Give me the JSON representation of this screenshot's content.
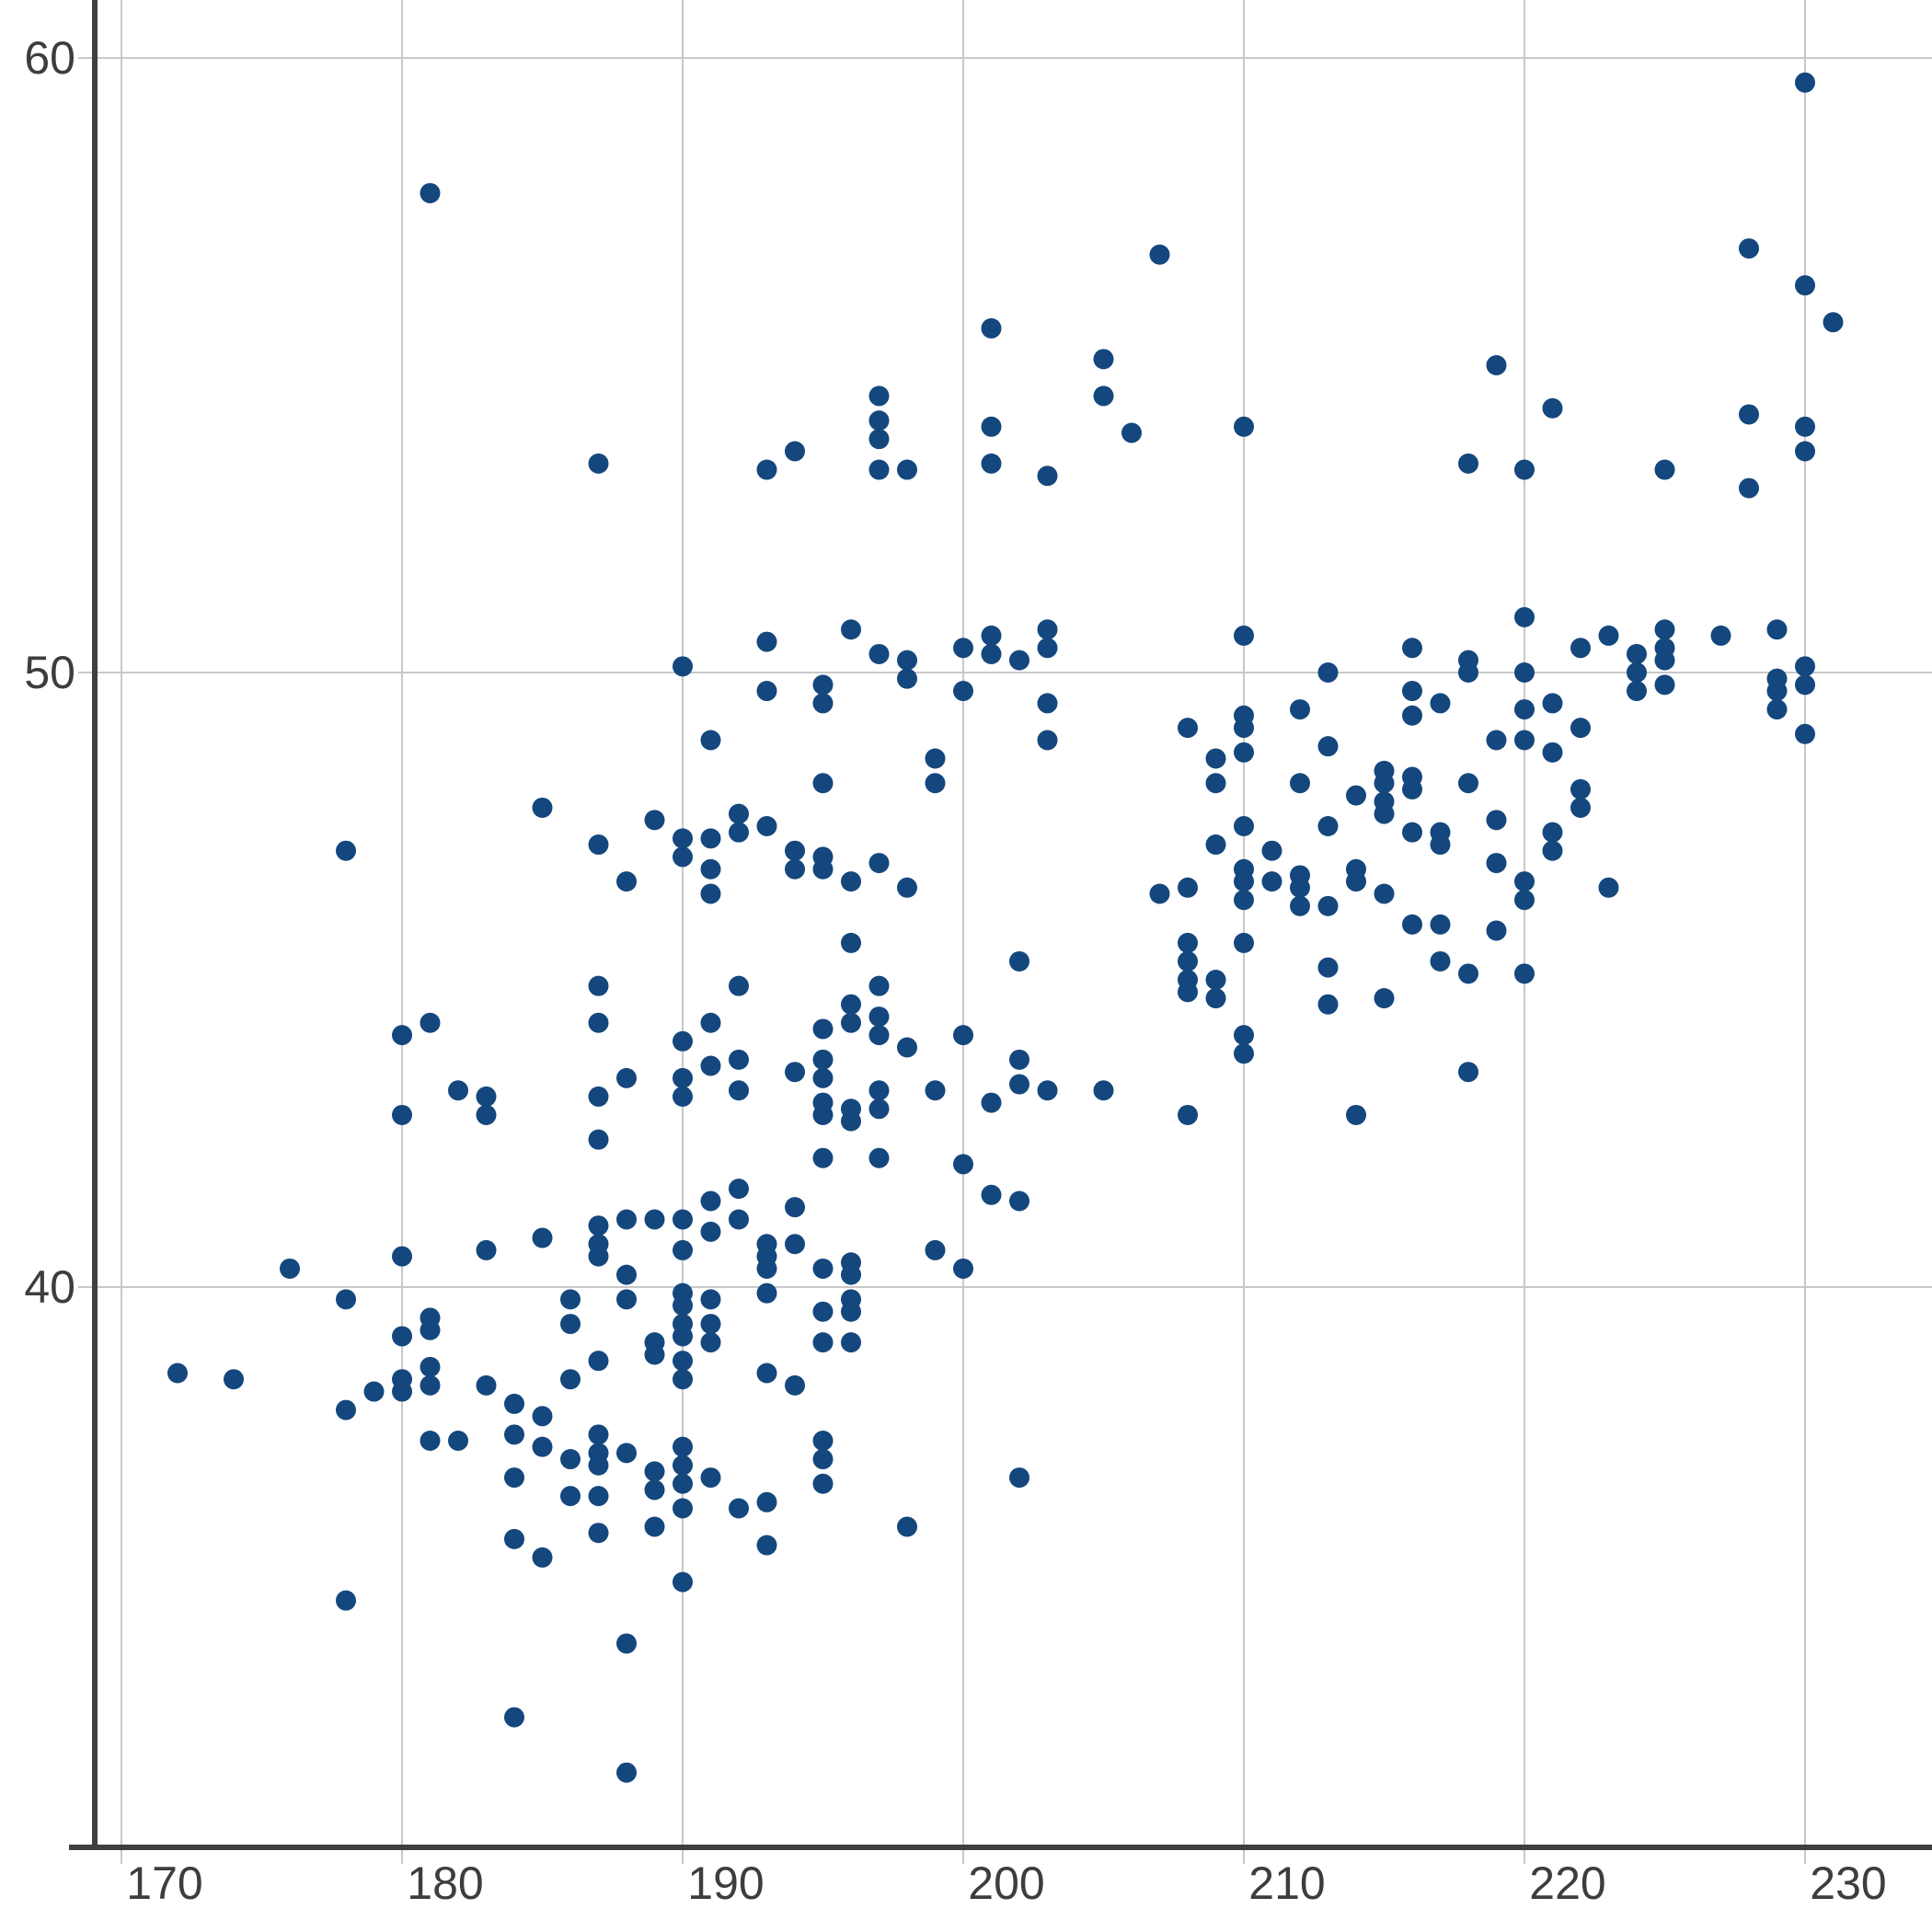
{
  "chart_data": {
    "type": "scatter",
    "title": "",
    "xlabel": "",
    "ylabel": "",
    "x_ticks": [
      170,
      180,
      190,
      200,
      210,
      220,
      230
    ],
    "y_ticks": [
      40,
      50,
      60
    ],
    "xlim": [
      169.0,
      234.5
    ],
    "ylim": [
      30.4,
      61.0
    ],
    "grid": true,
    "legend_position": "none",
    "point_color": "#14477D",
    "axis_color": "#3F3F3F",
    "grid_color": "#C8C8C8",
    "tick_label_color": "#3D3D3D",
    "points": [
      [
        181,
        57.8
      ],
      [
        230,
        59.6
      ],
      [
        228,
        56.9
      ],
      [
        230,
        56.3
      ],
      [
        231,
        55.7
      ],
      [
        207,
        56.8
      ],
      [
        201,
        55.6
      ],
      [
        205,
        55.1
      ],
      [
        219,
        55.0
      ],
      [
        205,
        54.5
      ],
      [
        197,
        54.5
      ],
      [
        221,
        54.3
      ],
      [
        228,
        54.2
      ],
      [
        197,
        54.1
      ],
      [
        210,
        54.0
      ],
      [
        201,
        54.0
      ],
      [
        230,
        54.0
      ],
      [
        206,
        53.9
      ],
      [
        197,
        53.8
      ],
      [
        230,
        53.6
      ],
      [
        194,
        53.6
      ],
      [
        187,
        53.4
      ],
      [
        201,
        53.4
      ],
      [
        218,
        53.4
      ],
      [
        193,
        53.3
      ],
      [
        197,
        53.3
      ],
      [
        198,
        53.3
      ],
      [
        220,
        53.3
      ],
      [
        225,
        53.3
      ],
      [
        203,
        53.2
      ],
      [
        228,
        53.0
      ],
      [
        229,
        50.7
      ],
      [
        225,
        50.7
      ],
      [
        203,
        50.7
      ],
      [
        196,
        50.7
      ],
      [
        223,
        50.6
      ],
      [
        227,
        50.6
      ],
      [
        210,
        50.6
      ],
      [
        201,
        50.6
      ],
      [
        220,
        50.9
      ],
      [
        222,
        50.4
      ],
      [
        224,
        50.3
      ],
      [
        224,
        50.0
      ],
      [
        224,
        49.7
      ],
      [
        225,
        50.4
      ],
      [
        225,
        50.2
      ],
      [
        225,
        49.8
      ],
      [
        220,
        50.0
      ],
      [
        229,
        49.9
      ],
      [
        229,
        49.7
      ],
      [
        230,
        50.1
      ],
      [
        230,
        49.8
      ],
      [
        216,
        50.4
      ],
      [
        218,
        50.2
      ],
      [
        218,
        50.0
      ],
      [
        213,
        50.0
      ],
      [
        203,
        50.4
      ],
      [
        202,
        50.2
      ],
      [
        200,
        50.4
      ],
      [
        201,
        50.3
      ],
      [
        190,
        50.1
      ],
      [
        193,
        50.5
      ],
      [
        197,
        50.3
      ],
      [
        198,
        50.2
      ],
      [
        198,
        49.9
      ],
      [
        193,
        49.7
      ],
      [
        195,
        49.8
      ],
      [
        195,
        49.5
      ],
      [
        200,
        49.7
      ],
      [
        203,
        49.5
      ],
      [
        216,
        49.7
      ],
      [
        216,
        49.3
      ],
      [
        217,
        49.5
      ],
      [
        210,
        49.3
      ],
      [
        210,
        49.1
      ],
      [
        212,
        49.4
      ],
      [
        220,
        49.4
      ],
      [
        221,
        49.5
      ],
      [
        229,
        49.4
      ],
      [
        222,
        49.1
      ],
      [
        230,
        49.0
      ],
      [
        219,
        48.9
      ],
      [
        220,
        48.9
      ],
      [
        221,
        48.7
      ],
      [
        208,
        49.1
      ],
      [
        213,
        48.8
      ],
      [
        203,
        48.9
      ],
      [
        209,
        48.6
      ],
      [
        210,
        48.7
      ],
      [
        215,
        48.4
      ],
      [
        215,
        48.2
      ],
      [
        215,
        47.9
      ],
      [
        216,
        48.3
      ],
      [
        212,
        48.2
      ],
      [
        209,
        48.2
      ],
      [
        214,
        48.0
      ],
      [
        216,
        48.1
      ],
      [
        218,
        48.2
      ],
      [
        191,
        48.9
      ],
      [
        199,
        48.6
      ],
      [
        199,
        48.2
      ],
      [
        195,
        48.2
      ],
      [
        222,
        48.1
      ],
      [
        222,
        47.8
      ],
      [
        219,
        47.6
      ],
      [
        221,
        47.4
      ],
      [
        221,
        47.1
      ],
      [
        219,
        46.9
      ],
      [
        185,
        47.8
      ],
      [
        178,
        47.1
      ],
      [
        189,
        47.6
      ],
      [
        192,
        47.7
      ],
      [
        192,
        47.4
      ],
      [
        193,
        47.5
      ],
      [
        190,
        47.3
      ],
      [
        187,
        47.2
      ],
      [
        191,
        47.3
      ],
      [
        190,
        47.0
      ],
      [
        210,
        47.5
      ],
      [
        209,
        47.2
      ],
      [
        213,
        47.5
      ],
      [
        215,
        47.7
      ],
      [
        216,
        47.4
      ],
      [
        217,
        47.4
      ],
      [
        217,
        47.2
      ],
      [
        211,
        47.1
      ],
      [
        188,
        46.6
      ],
      [
        191,
        46.8
      ],
      [
        191,
        46.4
      ],
      [
        194,
        47.1
      ],
      [
        194,
        46.8
      ],
      [
        195,
        47.0
      ],
      [
        195,
        46.8
      ],
      [
        196,
        46.6
      ],
      [
        197,
        46.9
      ],
      [
        198,
        46.5
      ],
      [
        214,
        46.8
      ],
      [
        214,
        46.6
      ],
      [
        210,
        46.8
      ],
      [
        210,
        46.6
      ],
      [
        210,
        46.3
      ],
      [
        211,
        46.6
      ],
      [
        212,
        46.7
      ],
      [
        212,
        46.5
      ],
      [
        212,
        46.2
      ],
      [
        208,
        46.5
      ],
      [
        207,
        46.4
      ],
      [
        213,
        46.2
      ],
      [
        215,
        46.4
      ],
      [
        220,
        46.6
      ],
      [
        220,
        46.3
      ],
      [
        223,
        46.5
      ],
      [
        216,
        45.9
      ],
      [
        217,
        45.9
      ],
      [
        219,
        45.8
      ],
      [
        210,
        45.6
      ],
      [
        208,
        45.6
      ],
      [
        208,
        45.3
      ],
      [
        213,
        45.2
      ],
      [
        217,
        45.3
      ],
      [
        218,
        45.1
      ],
      [
        196,
        45.6
      ],
      [
        208,
        45.0
      ],
      [
        209,
        45.0
      ],
      [
        208,
        44.8
      ],
      [
        209,
        44.7
      ],
      [
        213,
        44.6
      ],
      [
        215,
        44.7
      ],
      [
        220,
        45.1
      ],
      [
        202,
        45.3
      ],
      [
        187,
        44.9
      ],
      [
        192,
        44.9
      ],
      [
        197,
        44.9
      ],
      [
        196,
        44.6
      ],
      [
        196,
        44.3
      ],
      [
        197,
        44.4
      ],
      [
        197,
        44.1
      ],
      [
        187,
        44.3
      ],
      [
        191,
        44.3
      ],
      [
        190,
        44.0
      ],
      [
        195,
        44.2
      ],
      [
        200,
        44.1
      ],
      [
        180,
        44.1
      ],
      [
        181,
        44.3
      ],
      [
        198,
        43.9
      ],
      [
        210,
        44.1
      ],
      [
        210,
        43.8
      ],
      [
        192,
        43.7
      ],
      [
        191,
        43.6
      ],
      [
        195,
        43.7
      ],
      [
        195,
        43.4
      ],
      [
        194,
        43.5
      ],
      [
        188,
        43.4
      ],
      [
        190,
        43.4
      ],
      [
        190,
        43.1
      ],
      [
        187,
        43.1
      ],
      [
        195,
        43.0
      ],
      [
        201,
        43.0
      ],
      [
        192,
        43.2
      ],
      [
        182,
        43.2
      ],
      [
        183,
        43.1
      ],
      [
        183,
        42.8
      ],
      [
        180,
        42.8
      ],
      [
        218,
        43.5
      ],
      [
        202,
        43.7
      ],
      [
        202,
        43.3
      ],
      [
        203,
        43.2
      ],
      [
        205,
        43.2
      ],
      [
        199,
        43.2
      ],
      [
        197,
        43.2
      ],
      [
        197,
        42.9
      ],
      [
        196,
        42.9
      ],
      [
        196,
        42.7
      ],
      [
        195,
        42.8
      ],
      [
        187,
        42.4
      ],
      [
        195,
        42.1
      ],
      [
        197,
        42.1
      ],
      [
        200,
        42.0
      ],
      [
        208,
        42.8
      ],
      [
        214,
        42.8
      ],
      [
        190,
        41.1
      ],
      [
        191,
        41.4
      ],
      [
        192,
        41.6
      ],
      [
        191,
        40.9
      ],
      [
        192,
        41.1
      ],
      [
        188,
        41.1
      ],
      [
        189,
        41.1
      ],
      [
        187,
        41.0
      ],
      [
        187,
        40.7
      ],
      [
        194,
        41.3
      ],
      [
        194,
        40.7
      ],
      [
        193,
        40.7
      ],
      [
        201,
        41.5
      ],
      [
        202,
        41.4
      ],
      [
        185,
        40.8
      ],
      [
        176,
        40.3
      ],
      [
        180,
        40.5
      ],
      [
        183,
        40.6
      ],
      [
        187,
        40.5
      ],
      [
        188,
        40.2
      ],
      [
        190,
        40.6
      ],
      [
        193,
        40.5
      ],
      [
        193,
        40.3
      ],
      [
        195,
        40.3
      ],
      [
        196,
        40.4
      ],
      [
        196,
        40.2
      ],
      [
        199,
        40.6
      ],
      [
        200,
        40.3
      ],
      [
        178,
        39.8
      ],
      [
        181,
        39.5
      ],
      [
        181,
        39.3
      ],
      [
        180,
        39.2
      ],
      [
        186,
        39.8
      ],
      [
        186,
        39.4
      ],
      [
        188,
        39.8
      ],
      [
        190,
        39.9
      ],
      [
        190,
        39.7
      ],
      [
        190,
        39.4
      ],
      [
        190,
        39.2
      ],
      [
        190,
        38.8
      ],
      [
        190,
        38.5
      ],
      [
        191,
        39.8
      ],
      [
        191,
        39.4
      ],
      [
        191,
        39.1
      ],
      [
        193,
        39.9
      ],
      [
        196,
        39.8
      ],
      [
        196,
        39.6
      ],
      [
        196,
        39.1
      ],
      [
        195,
        39.6
      ],
      [
        195,
        39.1
      ],
      [
        189,
        39.1
      ],
      [
        189,
        38.9
      ],
      [
        187,
        38.8
      ],
      [
        186,
        38.5
      ],
      [
        193,
        38.6
      ],
      [
        194,
        38.4
      ],
      [
        172,
        38.6
      ],
      [
        174,
        38.5
      ],
      [
        180,
        38.5
      ],
      [
        180,
        38.3
      ],
      [
        181,
        38.4
      ],
      [
        179,
        38.3
      ],
      [
        178,
        38.0
      ],
      [
        183,
        38.4
      ],
      [
        181,
        38.7
      ],
      [
        184,
        38.1
      ],
      [
        185,
        37.9
      ],
      [
        184,
        37.6
      ],
      [
        185,
        37.4
      ],
      [
        181,
        37.5
      ],
      [
        182,
        37.5
      ],
      [
        187,
        37.6
      ],
      [
        188,
        37.3
      ],
      [
        187,
        37.3
      ],
      [
        187,
        37.1
      ],
      [
        186,
        37.2
      ],
      [
        186,
        36.6
      ],
      [
        187,
        36.6
      ],
      [
        189,
        37.0
      ],
      [
        189,
        36.7
      ],
      [
        191,
        36.9
      ],
      [
        192,
        36.4
      ],
      [
        193,
        36.5
      ],
      [
        187,
        36.0
      ],
      [
        189,
        36.1
      ],
      [
        190,
        37.4
      ],
      [
        190,
        37.1
      ],
      [
        190,
        36.8
      ],
      [
        190,
        36.4
      ],
      [
        195,
        37.5
      ],
      [
        195,
        37.2
      ],
      [
        195,
        36.8
      ],
      [
        184,
        36.9
      ],
      [
        185,
        35.6
      ],
      [
        184,
        35.9
      ],
      [
        178,
        34.9
      ],
      [
        202,
        36.9
      ],
      [
        198,
        36.1
      ],
      [
        193,
        35.8
      ],
      [
        190,
        35.2
      ],
      [
        188,
        34.2
      ],
      [
        184,
        33.0
      ],
      [
        188,
        32.1
      ]
    ]
  }
}
